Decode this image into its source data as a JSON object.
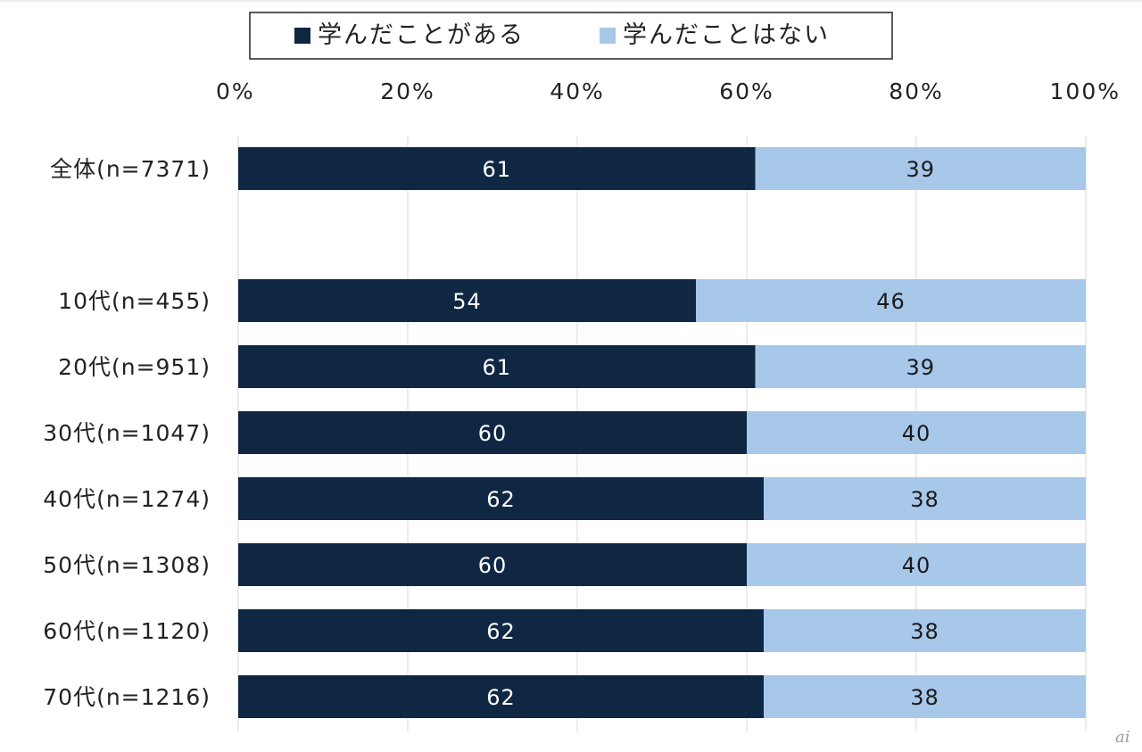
{
  "chart_data": {
    "type": "bar",
    "orientation": "horizontal",
    "stacked": true,
    "categories": [
      "全体(n=7371)",
      "",
      "10代(n=455)",
      "20代(n=951)",
      "30代(n=1047)",
      "40代(n=1274)",
      "50代(n=1308)",
      "60代(n=1120)",
      "70代(n=1216)"
    ],
    "series": [
      {
        "name": "学んだことがある",
        "values": [
          61,
          null,
          54,
          61,
          60,
          62,
          60,
          62,
          62
        ],
        "labels": [
          "61",
          "",
          "54",
          "61",
          "60",
          "62",
          "60",
          "62",
          "62"
        ]
      },
      {
        "name": "学んだことはない",
        "values": [
          39,
          null,
          46,
          39,
          40,
          38,
          40,
          38,
          38
        ],
        "labels": [
          "39",
          "",
          "46",
          "39",
          "40",
          "38",
          "40",
          "38",
          "38"
        ]
      }
    ],
    "xlim": [
      0,
      100
    ],
    "x_ticks": [
      "0%",
      "20%",
      "40%",
      "60%",
      "80%",
      "100%"
    ],
    "grid": true,
    "legend_position": "top",
    "colors": [
      "#0f2742",
      "#a8c8ea"
    ],
    "value_label_colors": [
      "#ffffff",
      "#1a1a1a"
    ]
  },
  "watermark": "ai"
}
